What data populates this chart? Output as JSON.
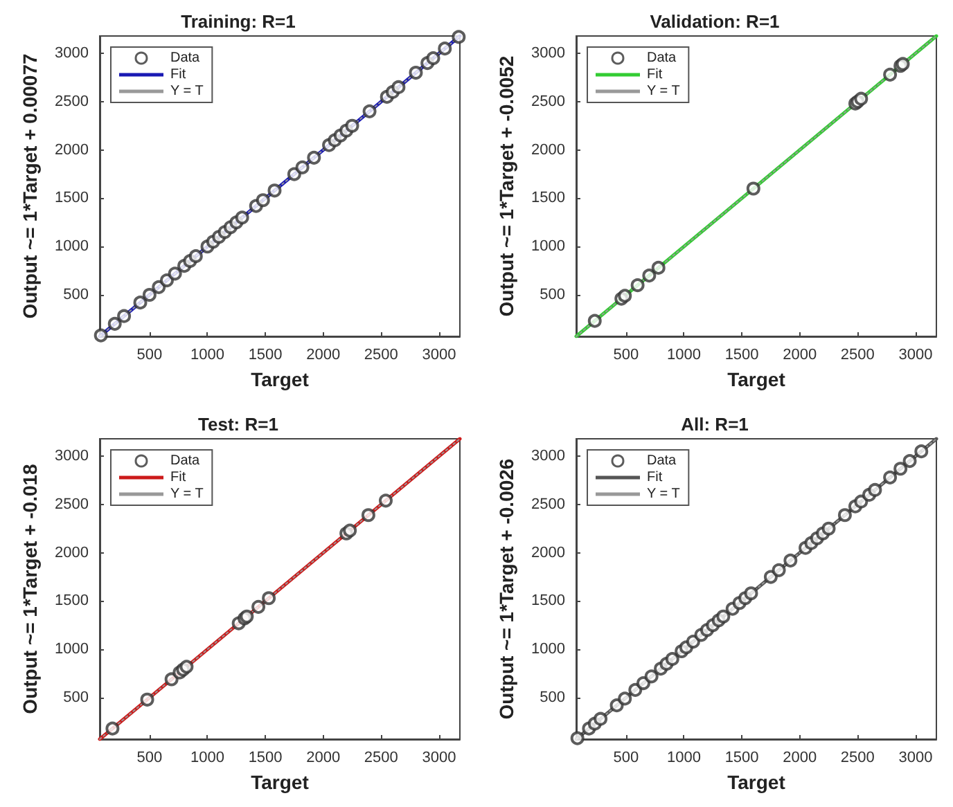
{
  "chart_data": [
    {
      "type": "scatter",
      "title": "Training: R=1",
      "xlabel": "Target",
      "ylabel": "Output ~= 1*Target + 0.00077",
      "xlim": [
        70,
        3180
      ],
      "ylim": [
        70,
        3180
      ],
      "xticks": [
        500,
        1000,
        1500,
        2000,
        2500,
        3000
      ],
      "yticks": [
        500,
        1000,
        1500,
        2000,
        2500,
        3000
      ],
      "legend": "top left",
      "series": [
        {
          "name": "Data",
          "type": "scatter",
          "marker": "circle",
          "color": "#333333",
          "x": [
            80,
            200,
            280,
            420,
            500,
            580,
            650,
            720,
            800,
            850,
            900,
            1000,
            1050,
            1100,
            1150,
            1200,
            1250,
            1300,
            1420,
            1480,
            1580,
            1750,
            1820,
            1920,
            2050,
            2100,
            2150,
            2200,
            2250,
            2400,
            2550,
            2600,
            2650,
            2800,
            2900,
            2950,
            3050,
            3170
          ],
          "values": [
            80,
            200,
            280,
            420,
            500,
            580,
            650,
            720,
            800,
            850,
            900,
            1000,
            1050,
            1100,
            1150,
            1200,
            1250,
            1300,
            1420,
            1480,
            1580,
            1750,
            1820,
            1920,
            2050,
            2100,
            2150,
            2200,
            2250,
            2400,
            2550,
            2600,
            2650,
            2800,
            2900,
            2950,
            3050,
            3170
          ]
        },
        {
          "name": "Fit",
          "type": "line",
          "marker": "none",
          "line_style": "solid",
          "color": "#1a1ab4",
          "x": [
            70,
            3180
          ],
          "values": [
            70,
            3180
          ]
        },
        {
          "name": "Y = T",
          "type": "line",
          "marker": "none",
          "line_style": "dotted",
          "color": "#999999",
          "x": [
            70,
            3180
          ],
          "values": [
            70,
            3180
          ]
        }
      ]
    },
    {
      "type": "scatter",
      "title": "Validation: R=1",
      "xlabel": "Target",
      "ylabel": "Output ~= 1*Target + -0.0052",
      "xlim": [
        70,
        3180
      ],
      "ylim": [
        70,
        3180
      ],
      "xticks": [
        500,
        1000,
        1500,
        2000,
        2500,
        3000
      ],
      "yticks": [
        500,
        1000,
        1500,
        2000,
        2500,
        3000
      ],
      "legend": "top left",
      "series": [
        {
          "name": "Data",
          "type": "scatter",
          "marker": "circle",
          "color": "#333333",
          "x": [
            230,
            460,
            490,
            600,
            700,
            780,
            1600,
            2480,
            2500,
            2530,
            2780,
            2870,
            2890
          ],
          "values": [
            230,
            460,
            490,
            600,
            700,
            780,
            1600,
            2480,
            2500,
            2530,
            2780,
            2870,
            2890
          ]
        },
        {
          "name": "Fit",
          "type": "line",
          "marker": "none",
          "line_style": "solid",
          "color": "#33cc33",
          "x": [
            70,
            3180
          ],
          "values": [
            70,
            3180
          ]
        },
        {
          "name": "Y = T",
          "type": "line",
          "marker": "none",
          "line_style": "dotted",
          "color": "#999999",
          "x": [
            70,
            3180
          ],
          "values": [
            70,
            3180
          ]
        }
      ]
    },
    {
      "type": "scatter",
      "title": "Test: R=1",
      "xlabel": "Target",
      "ylabel": "Output ~= 1*Target + -0.018",
      "xlim": [
        70,
        3180
      ],
      "ylim": [
        70,
        3180
      ],
      "xticks": [
        500,
        1000,
        1500,
        2000,
        2500,
        3000
      ],
      "yticks": [
        500,
        1000,
        1500,
        2000,
        2500,
        3000
      ],
      "legend": "top left",
      "series": [
        {
          "name": "Data",
          "type": "scatter",
          "marker": "circle",
          "color": "#333333",
          "x": [
            180,
            480,
            690,
            760,
            790,
            820,
            1270,
            1320,
            1340,
            1440,
            1530,
            2200,
            2230,
            2390,
            2540
          ],
          "values": [
            180,
            480,
            690,
            760,
            790,
            820,
            1270,
            1320,
            1340,
            1440,
            1530,
            2200,
            2230,
            2390,
            2540
          ]
        },
        {
          "name": "Fit",
          "type": "line",
          "marker": "none",
          "line_style": "solid",
          "color": "#cc1a1a",
          "x": [
            70,
            3180
          ],
          "values": [
            70,
            3180
          ]
        },
        {
          "name": "Y = T",
          "type": "line",
          "marker": "none",
          "line_style": "dotted",
          "color": "#999999",
          "x": [
            70,
            3180
          ],
          "values": [
            70,
            3180
          ]
        }
      ]
    },
    {
      "type": "scatter",
      "title": "All: R=1",
      "xlabel": "Target",
      "ylabel": "Output ~= 1*Target + -0.0026",
      "xlim": [
        70,
        3180
      ],
      "ylim": [
        70,
        3180
      ],
      "xticks": [
        500,
        1000,
        1500,
        2000,
        2500,
        3000
      ],
      "yticks": [
        500,
        1000,
        1500,
        2000,
        2500,
        3000
      ],
      "legend": "top left",
      "series": [
        {
          "name": "Data",
          "type": "scatter",
          "marker": "circle",
          "color": "#333333",
          "x": [
            80,
            180,
            230,
            280,
            420,
            490,
            580,
            650,
            720,
            800,
            850,
            900,
            980,
            1020,
            1080,
            1150,
            1200,
            1250,
            1300,
            1340,
            1420,
            1480,
            1530,
            1580,
            1750,
            1820,
            1920,
            2050,
            2100,
            2150,
            2200,
            2250,
            2390,
            2480,
            2530,
            2600,
            2650,
            2780,
            2870,
            2950,
            3050
          ],
          "values": [
            80,
            180,
            230,
            280,
            420,
            490,
            580,
            650,
            720,
            800,
            850,
            900,
            980,
            1020,
            1080,
            1150,
            1200,
            1250,
            1300,
            1340,
            1420,
            1480,
            1530,
            1580,
            1750,
            1820,
            1920,
            2050,
            2100,
            2150,
            2200,
            2250,
            2390,
            2480,
            2530,
            2600,
            2650,
            2780,
            2870,
            2950,
            3050
          ]
        },
        {
          "name": "Fit",
          "type": "line",
          "marker": "none",
          "line_style": "solid",
          "color": "#555555",
          "x": [
            70,
            3180
          ],
          "values": [
            70,
            3180
          ]
        },
        {
          "name": "Y = T",
          "type": "line",
          "marker": "none",
          "line_style": "dotted",
          "color": "#999999",
          "x": [
            70,
            3180
          ],
          "values": [
            70,
            3180
          ]
        }
      ]
    }
  ]
}
